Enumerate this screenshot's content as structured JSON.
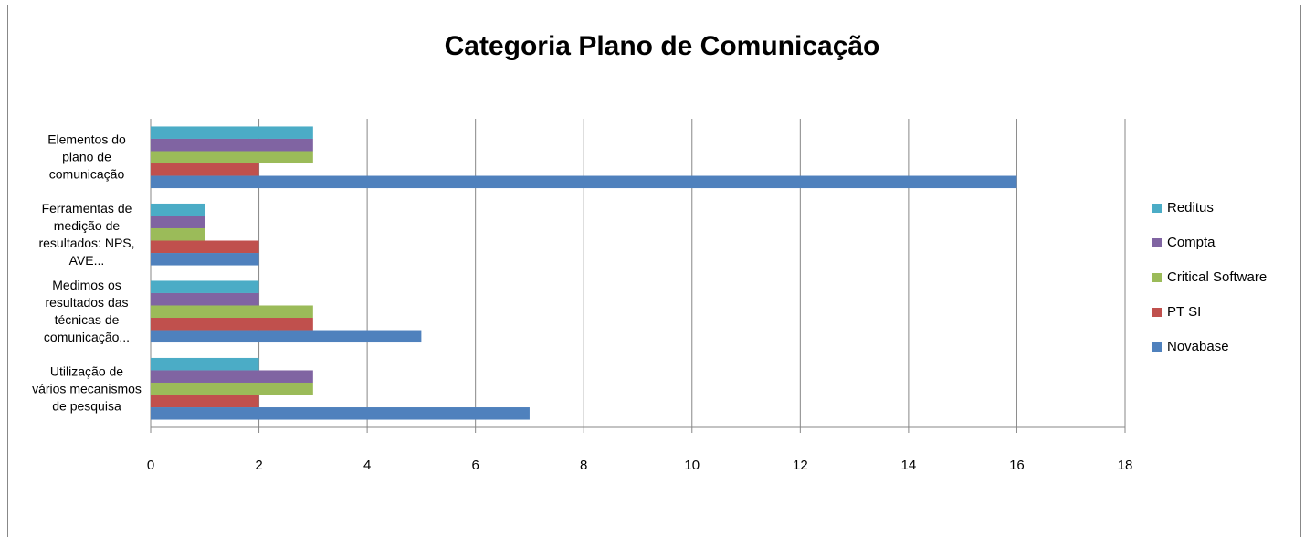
{
  "chart_data": {
    "type": "bar",
    "orientation": "horizontal",
    "title": "Categoria Plano de Comunicação",
    "categories": [
      "Elementos do plano de comunicação",
      "Ferramentas de medição de resultados: NPS, AVE...",
      "Medimos os resultados das técnicas de comunicação...",
      "Utilização de vários mecanismos de pesquisa"
    ],
    "series": [
      {
        "name": "Reditus",
        "color": "#4bacc6",
        "values": [
          3,
          1,
          2,
          2
        ]
      },
      {
        "name": "Compta",
        "color": "#8064a2",
        "values": [
          3,
          1,
          2,
          3
        ]
      },
      {
        "name": "Critical Software",
        "color": "#9bbb59",
        "values": [
          3,
          1,
          3,
          3
        ]
      },
      {
        "name": "PT SI",
        "color": "#c0504d",
        "values": [
          2,
          2,
          3,
          2
        ]
      },
      {
        "name": "Novabase",
        "color": "#4f81bd",
        "values": [
          16,
          2,
          5,
          7
        ]
      }
    ],
    "xlim": [
      0,
      18
    ],
    "xticks": [
      0,
      2,
      4,
      6,
      8,
      10,
      12,
      14,
      16,
      18
    ],
    "grid": true,
    "legend": "right"
  }
}
